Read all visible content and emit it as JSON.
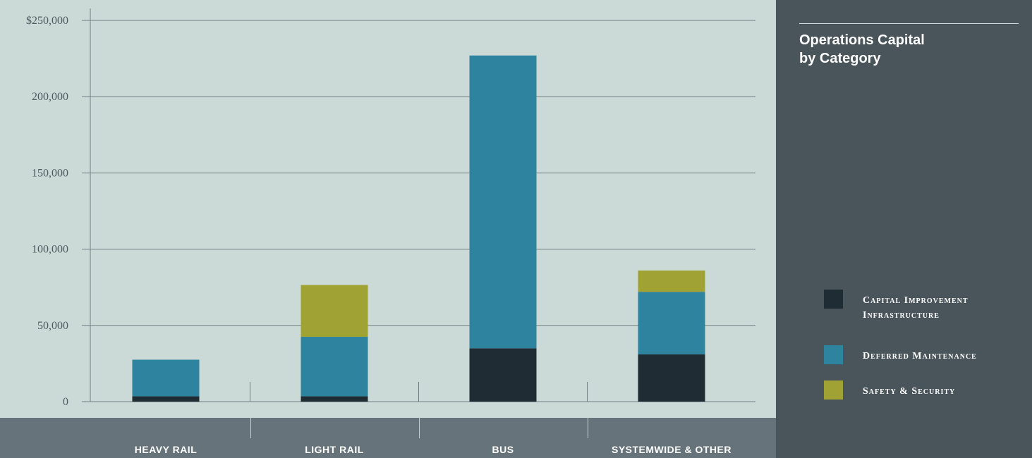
{
  "chart_data": {
    "type": "bar",
    "stacked": true,
    "title": "Operations Capital by Category",
    "categories": [
      "HEAVY RAIL",
      "LIGHT RAIL",
      "BUS",
      "SYSTEMWIDE & OTHER"
    ],
    "series": [
      {
        "name": "Capital Improvement Infrastructure",
        "color": "#1f2c34",
        "values": [
          3500,
          3500,
          35000,
          31000
        ]
      },
      {
        "name": "Deferred Maintenance",
        "color": "#2e839e",
        "values": [
          24000,
          39000,
          192000,
          41000
        ]
      },
      {
        "name": "Safety & Security",
        "color": "#a1a234",
        "values": [
          0,
          34000,
          0,
          14000
        ]
      }
    ],
    "yticks": [
      "0",
      "50,000",
      "100,000",
      "150,000",
      "200,000",
      "$250,000"
    ],
    "ylim": [
      0,
      250000
    ],
    "grid": true,
    "legend_position": "right"
  },
  "panel": {
    "title_line1": "Operations Capital",
    "title_line2": "by Category"
  },
  "legend": {
    "item1_line1": "Capital Improvement",
    "item1_line2": "Infrastructure",
    "item2": "Deferred Maintenance",
    "item3": "Safety & Security"
  },
  "colors": {
    "chart_background": "#cbdad7",
    "category_strip": "#66737a",
    "side_panel": "#4a555b",
    "gridline": "#6f7d80",
    "tick_text": "#4d5a5f"
  }
}
